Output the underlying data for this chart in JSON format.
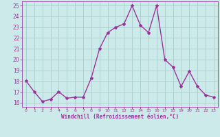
{
  "x": [
    0,
    1,
    2,
    3,
    4,
    5,
    6,
    7,
    8,
    9,
    10,
    11,
    12,
    13,
    14,
    15,
    16,
    17,
    18,
    19,
    20,
    21,
    22,
    23
  ],
  "y": [
    18,
    17,
    16.1,
    16.3,
    17,
    16.4,
    16.5,
    16.5,
    18.3,
    21,
    22.5,
    23,
    23.3,
    25,
    23.2,
    22.5,
    25,
    20,
    19.3,
    17.5,
    18.9,
    17.5,
    16.7,
    16.5
  ],
  "line_color": "#993399",
  "marker": "*",
  "bg_color": "#cceaea",
  "grid_color": "#aacccc",
  "xlabel": "Windchill (Refroidissement éolien,°C)",
  "xlim": [
    -0.5,
    23.5
  ],
  "ylim": [
    15.6,
    25.4
  ],
  "yticks": [
    16,
    17,
    18,
    19,
    20,
    21,
    22,
    23,
    24,
    25
  ],
  "xticks": [
    0,
    1,
    2,
    3,
    4,
    5,
    6,
    7,
    8,
    9,
    10,
    11,
    12,
    13,
    14,
    15,
    16,
    17,
    18,
    19,
    20,
    21,
    22,
    23
  ],
  "tick_color": "#993399",
  "label_color": "#993399",
  "linewidth": 1.0,
  "markersize": 3
}
